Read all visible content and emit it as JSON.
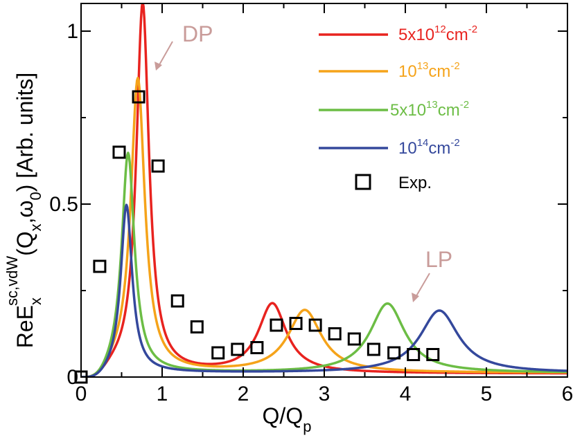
{
  "chart_data": {
    "type": "line",
    "xlabel": "Q/Q",
    "xlabel_sub": "p",
    "ylabel": "ReE",
    "ylabel_sub": "x",
    "ylabel_sup": "sc,vdW",
    "ylabel_args": "(Q",
    "ylabel_args_sub1": "x",
    "ylabel_args_mid": ",ω",
    "ylabel_args_sub2": "0",
    "ylabel_args_end": ") [Arb. units]",
    "xlim": [
      0,
      6
    ],
    "ylim": [
      0,
      1.08
    ],
    "x_ticks": [
      0,
      1,
      2,
      3,
      4,
      5,
      6
    ],
    "x_tick_labels": [
      "0",
      "1",
      "2",
      "3",
      "4",
      "5",
      "6"
    ],
    "y_ticks": [
      0,
      0.5,
      1
    ],
    "y_tick_labels": [
      "0",
      "0.5",
      "1"
    ],
    "legend_position": "top-right",
    "series": [
      {
        "name_base": "5x10",
        "name_exp": "12",
        "name_unit": "cm",
        "name_unit_exp": "-2",
        "color": "#e8231f",
        "peaks": [
          [
            0.76,
            1.07,
            0.095
          ],
          [
            2.36,
            0.2,
            0.21
          ]
        ],
        "baseline": 0.01
      },
      {
        "name_base": "10",
        "name_exp": "13",
        "name_unit": "cm",
        "name_unit_exp": "-2",
        "color": "#f5a31a",
        "peaks": [
          [
            0.7,
            0.85,
            0.105
          ],
          [
            2.76,
            0.18,
            0.25
          ]
        ],
        "baseline": 0.012
      },
      {
        "name_base": "5x10",
        "name_exp": "13",
        "name_unit": "cm",
        "name_unit_exp": "-2",
        "color": "#6cbd45",
        "peaks": [
          [
            0.58,
            0.635,
            0.095
          ],
          [
            3.78,
            0.2,
            0.26
          ]
        ],
        "baseline": 0.012
      },
      {
        "name_base": "10",
        "name_exp": "14",
        "name_unit": "cm",
        "name_unit_exp": "-2",
        "color": "#34489c",
        "peaks": [
          [
            0.56,
            0.485,
            0.085
          ],
          [
            4.42,
            0.18,
            0.29
          ]
        ],
        "baseline": 0.012
      }
    ],
    "experiment": {
      "name": "Exp.",
      "x": [
        0.0,
        0.23,
        0.47,
        0.71,
        0.95,
        1.19,
        1.43,
        1.69,
        1.93,
        2.17,
        2.41,
        2.65,
        2.89,
        3.13,
        3.37,
        3.61,
        3.86,
        4.1,
        4.34
      ],
      "y": [
        0.0,
        0.32,
        0.65,
        0.81,
        0.61,
        0.22,
        0.145,
        0.07,
        0.08,
        0.085,
        0.15,
        0.155,
        0.15,
        0.125,
        0.11,
        0.08,
        0.07,
        0.065,
        0.065
      ]
    },
    "annotations": [
      {
        "text": "DP",
        "color": "#c99c9a"
      },
      {
        "text": "LP",
        "color": "#c99c9a"
      }
    ]
  }
}
